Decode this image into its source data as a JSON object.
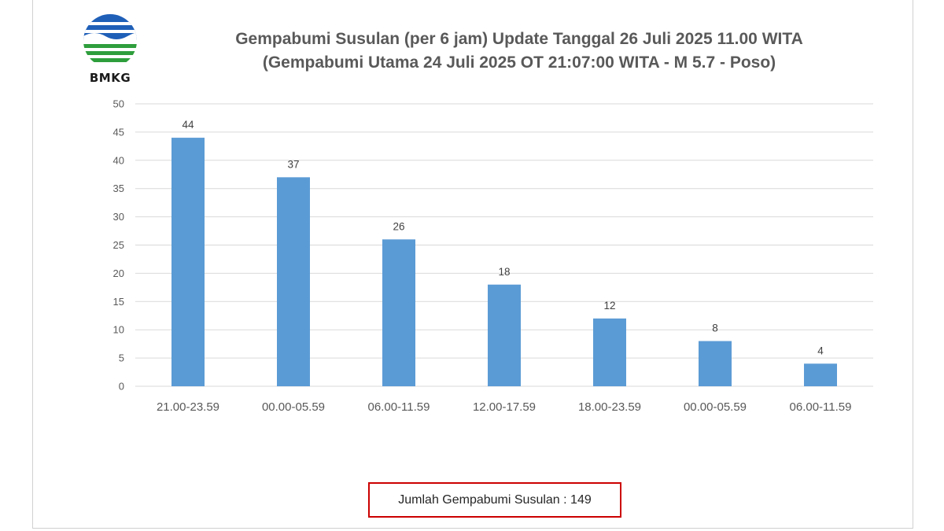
{
  "logo": {
    "text": "BMKG"
  },
  "title": {
    "line1": "Gempabumi Susulan (per 6 jam) Update Tanggal 26 Juli 2025 11.00 WITA",
    "line2": "(Gempabumi Utama 24 Juli 2025 OT 21:07:00 WITA - M 5.7 - Poso)"
  },
  "total_label": "Jumlah Gempabumi Susulan : 149",
  "colors": {
    "bar": "#5b9bd5",
    "title": "#595959",
    "box_border": "#cc0000",
    "grid": "#d9d9d9"
  },
  "chart_data": {
    "type": "bar",
    "title": "Gempabumi Susulan (per 6 jam) Update Tanggal 26 Juli 2025 11.00 WITA (Gempabumi Utama 24 Juli 2025 OT 21:07:00 WITA - M 5.7 - Poso)",
    "categories": [
      "21.00-23.59",
      "00.00-05.59",
      "06.00-11.59",
      "12.00-17.59",
      "18.00-23.59",
      "00.00-05.59",
      "06.00-11.59"
    ],
    "values": [
      44,
      37,
      26,
      18,
      12,
      8,
      4
    ],
    "ylim": [
      0,
      50
    ],
    "yticks": [
      0,
      5,
      10,
      15,
      20,
      25,
      30,
      35,
      40,
      45,
      50
    ],
    "xlabel": "",
    "ylabel": "",
    "grid": true,
    "legend": "none",
    "data_labels": true
  }
}
